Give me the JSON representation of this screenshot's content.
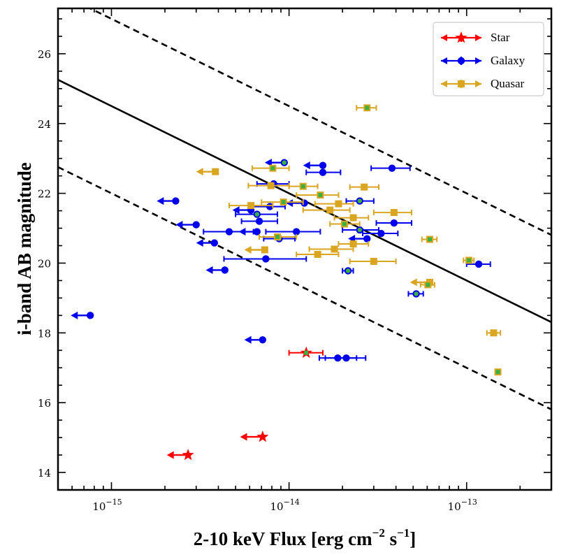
{
  "chart_data": {
    "type": "scatter",
    "xscale": "log",
    "xlim": [
      5e-16,
      3e-13
    ],
    "ylim": [
      13.5,
      27.3
    ],
    "xlabel": "2-10 keV Flux [erg cm",
    "xlabel_parts": [
      "2-10 keV Flux [erg cm",
      "−2",
      " s",
      "−1",
      "]"
    ],
    "ylabel": "i-band AB magnitude",
    "xtick_labels": [
      {
        "value": 1e-15,
        "base": "10",
        "exp": "−15"
      },
      {
        "value": 1e-14,
        "base": "10",
        "exp": "−14"
      },
      {
        "value": 1e-13,
        "base": "10",
        "exp": "−13"
      }
    ],
    "yticks": [
      14,
      16,
      18,
      20,
      22,
      24,
      26
    ],
    "ytick_labels": [
      "14",
      "16",
      "18",
      "20",
      "22",
      "24",
      "26"
    ],
    "legend": {
      "position": "top-right",
      "entries": [
        "Star",
        "Galaxy",
        "Quasar"
      ]
    },
    "colors": {
      "star": "#ff0000",
      "galaxy": "#0000ee",
      "quasar": "#daa520",
      "highlight": "#3cb043"
    },
    "lines": [
      {
        "name": "relation",
        "style": "solid",
        "slope_per_dex": -2.5,
        "y_at_1e-14": 22.0
      },
      {
        "name": "upper-bound",
        "style": "dashed",
        "slope_per_dex": -2.5,
        "y_at_1e-14": 24.5
      },
      {
        "name": "lower-bound",
        "style": "dashed",
        "slope_per_dex": -2.5,
        "y_at_1e-14": 19.5
      }
    ],
    "series": [
      {
        "name": "Star",
        "marker": "star",
        "color": "#ff0000",
        "points": [
          {
            "x": 1.25e-14,
            "y": 17.43,
            "xerr": [
              1e-14,
              1.55e-14
            ],
            "highlight": true
          },
          {
            "x": 7.1e-15,
            "y": 15.02,
            "upper_limit": true,
            "arrow_to": 5.3e-15
          },
          {
            "x": 2.7e-15,
            "y": 14.5,
            "upper_limit": true,
            "arrow_to": 2.05e-15
          }
        ]
      },
      {
        "name": "Galaxy",
        "marker": "circle",
        "color": "#0000ee",
        "points": [
          {
            "x": 7.6e-16,
            "y": 18.5,
            "upper_limit": true,
            "arrow_to": 5.9e-16
          },
          {
            "x": 2.3e-15,
            "y": 21.78,
            "upper_limit": true,
            "arrow_to": 1.8e-15
          },
          {
            "x": 3e-15,
            "y": 21.1,
            "upper_limit": true,
            "arrow_to": 2.3e-15
          },
          {
            "x": 3.8e-15,
            "y": 20.58,
            "upper_limit": true,
            "arrow_to": 3e-15
          },
          {
            "x": 4.35e-15,
            "y": 19.8,
            "upper_limit": true,
            "arrow_to": 3.4e-15
          },
          {
            "x": 7.1e-15,
            "y": 17.8,
            "upper_limit": true,
            "arrow_to": 5.6e-15
          },
          {
            "x": 9.4e-15,
            "y": 22.88,
            "upper_limit": true,
            "arrow_to": 7.3e-15,
            "highlight": true
          },
          {
            "x": 1.55e-14,
            "y": 22.8,
            "upper_limit": true,
            "arrow_to": 1.2e-14
          },
          {
            "x": 1.55e-14,
            "y": 22.6,
            "xerr": [
              1.25e-14,
              1.95e-14
            ]
          },
          {
            "x": 3.8e-14,
            "y": 22.72,
            "xerr": [
              2.9e-14,
              4.8e-14
            ]
          },
          {
            "x": 8.2e-15,
            "y": 22.27,
            "xerr": [
              6.6e-15,
              1e-14
            ]
          },
          {
            "x": 2.5e-14,
            "y": 21.78,
            "xerr": [
              2.1e-14,
              3e-14
            ],
            "highlight": true
          },
          {
            "x": 1.22e-14,
            "y": 21.72,
            "upper_limit": true,
            "arrow_to": 9.6e-15
          },
          {
            "x": 7.8e-15,
            "y": 21.62,
            "xerr": [
              6.2e-15,
              9.5e-15
            ]
          },
          {
            "x": 6.1e-15,
            "y": 21.52,
            "upper_limit": true,
            "arrow_to": 4.8e-15
          },
          {
            "x": 6.6e-15,
            "y": 21.4,
            "xerr": [
              5e-15,
              8.6e-15
            ],
            "highlight": true
          },
          {
            "x": 6.8e-15,
            "y": 21.2,
            "xerr": [
              5.4e-15,
              8.6e-15
            ]
          },
          {
            "x": 3.9e-14,
            "y": 21.15,
            "xerr": [
              3.1e-14,
              4.9e-14
            ]
          },
          {
            "x": 2.5e-14,
            "y": 20.95,
            "xerr": [
              2e-14,
              3.2e-14
            ],
            "highlight": true
          },
          {
            "x": 6.6e-15,
            "y": 20.9,
            "upper_limit": true,
            "arrow_to": 5.2e-15
          },
          {
            "x": 1.1e-14,
            "y": 20.9,
            "xerr": [
              7.4e-15,
              1.5e-14
            ]
          },
          {
            "x": 4.6e-15,
            "y": 20.9,
            "xerr": [
              3.3e-15,
              6.3e-15
            ]
          },
          {
            "x": 3.3e-14,
            "y": 20.85,
            "xerr": [
              2.6e-14,
              4.1e-14
            ]
          },
          {
            "x": 8.8e-15,
            "y": 20.7,
            "xerr": [
              7.2e-15,
              1.08e-14
            ],
            "highlight": true
          },
          {
            "x": 2.75e-14,
            "y": 20.7,
            "upper_limit": true,
            "arrow_to": 2.15e-14
          },
          {
            "x": 7.4e-15,
            "y": 20.12,
            "xerr": [
              4.3e-15,
              1.25e-14
            ]
          },
          {
            "x": 2.15e-14,
            "y": 19.78,
            "xerr": [
              2e-14,
              2.3e-14
            ],
            "highlight": true
          },
          {
            "x": 1.17e-13,
            "y": 19.97,
            "xerr": [
              1e-13,
              1.36e-13
            ]
          },
          {
            "x": 5.2e-14,
            "y": 19.12,
            "xerr": [
              4.7e-14,
              5.7e-14
            ],
            "highlight": true
          },
          {
            "x": 1.88e-14,
            "y": 17.28,
            "xerr": [
              1.48e-14,
              2.4e-14
            ]
          },
          {
            "x": 2.1e-14,
            "y": 17.28,
            "xerr": [
              1.6e-14,
              2.7e-14
            ]
          }
        ]
      },
      {
        "name": "Quasar",
        "marker": "square",
        "color": "#daa520",
        "points": [
          {
            "x": 3.85e-15,
            "y": 22.62,
            "upper_limit": true,
            "arrow_to": 3e-15
          },
          {
            "x": 2.75e-14,
            "y": 24.45,
            "xerr": [
              2.4e-14,
              3.1e-14
            ],
            "highlight": true
          },
          {
            "x": 8.1e-15,
            "y": 22.72,
            "xerr": [
              6.2e-15,
              1e-14
            ],
            "highlight": true
          },
          {
            "x": 1.2e-14,
            "y": 22.2,
            "xerr": [
              1e-14,
              1.45e-14
            ],
            "highlight": true
          },
          {
            "x": 7.9e-15,
            "y": 22.22,
            "xerr": [
              5.9e-15,
              1e-14
            ]
          },
          {
            "x": 2.65e-14,
            "y": 22.18,
            "xerr": [
              2.2e-14,
              3.2e-14
            ]
          },
          {
            "x": 1.5e-14,
            "y": 21.95,
            "xerr": [
              1.1e-14,
              1.9e-14
            ],
            "highlight": true
          },
          {
            "x": 9.3e-15,
            "y": 21.75,
            "xerr": [
              7e-15,
              1.2e-14
            ],
            "highlight": true
          },
          {
            "x": 1.9e-14,
            "y": 21.7,
            "xerr": [
              1.4e-14,
              2.3e-14
            ]
          },
          {
            "x": 6.1e-15,
            "y": 21.65,
            "xerr": [
              4.6e-15,
              8.1e-15
            ]
          },
          {
            "x": 1.7e-14,
            "y": 21.52,
            "xerr": [
              1.2e-14,
              2.2e-14
            ]
          },
          {
            "x": 3.9e-14,
            "y": 21.45,
            "xerr": [
              3e-14,
              4.9e-14
            ]
          },
          {
            "x": 2.3e-14,
            "y": 21.3,
            "xerr": [
              1.8e-14,
              2.8e-14
            ]
          },
          {
            "x": 2.05e-14,
            "y": 21.12,
            "xerr": [
              1.7e-14,
              2.5e-14
            ],
            "highlight": true
          },
          {
            "x": 6.2e-14,
            "y": 20.68,
            "xerr": [
              5.6e-14,
              6.8e-14
            ],
            "highlight": true
          },
          {
            "x": 8.6e-15,
            "y": 20.75,
            "xerr": [
              6.8e-15,
              1.1e-14
            ],
            "highlight": true
          },
          {
            "x": 2.3e-14,
            "y": 20.55,
            "xerr": [
              1.9e-14,
              2.8e-14
            ]
          },
          {
            "x": 1.8e-14,
            "y": 20.4,
            "xerr": [
              1.3e-14,
              2.3e-14
            ]
          },
          {
            "x": 7.3e-15,
            "y": 20.38,
            "upper_limit": true,
            "arrow_to": 5.6e-15
          },
          {
            "x": 1.45e-14,
            "y": 20.25,
            "xerr": [
              1.1e-14,
              1.9e-14
            ]
          },
          {
            "x": 1.03e-13,
            "y": 20.08,
            "xerr": [
              9.6e-14,
              1.1e-13
            ],
            "highlight": true
          },
          {
            "x": 3e-14,
            "y": 20.05,
            "xerr": [
              2.2e-14,
              4e-14
            ]
          },
          {
            "x": 6.2e-14,
            "y": 19.45,
            "upper_limit": true,
            "arrow_to": 4.8e-14
          },
          {
            "x": 6.05e-14,
            "y": 19.38,
            "xerr": [
              5.5e-14,
              6.6e-14
            ],
            "highlight": true
          },
          {
            "x": 1.42e-13,
            "y": 18.0,
            "xerr": [
              1.3e-13,
              1.55e-13
            ]
          },
          {
            "x": 1.5e-13,
            "y": 16.88,
            "highlight": true
          }
        ]
      }
    ]
  }
}
